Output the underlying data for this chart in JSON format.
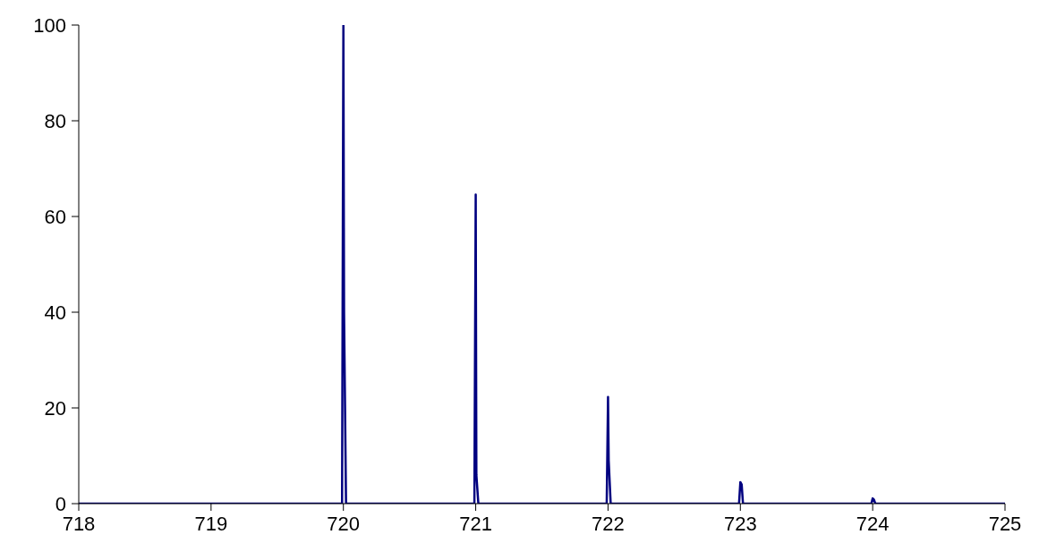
{
  "chart_data": {
    "type": "line",
    "x": [
      718,
      719.99,
      720,
      720.005,
      720.02,
      720.99,
      721,
      721.005,
      721.02,
      721.99,
      722,
      722.005,
      722.02,
      722.99,
      723,
      723.01,
      723.02,
      723.99,
      724,
      724.01,
      724.02,
      725
    ],
    "series": [
      {
        "color": "#000080",
        "values": [
          0,
          0,
          100,
          40,
          0,
          0,
          64.6,
          6,
          0,
          0,
          22.3,
          9,
          0,
          0,
          4.5,
          4,
          0,
          0,
          1.1,
          0.8,
          0,
          0
        ]
      }
    ],
    "xlim": [
      718,
      725
    ],
    "xticks": [
      718,
      719,
      720,
      721,
      722,
      723,
      724,
      725
    ],
    "ylim": [
      0,
      100
    ],
    "yticks": [
      0,
      20,
      40,
      60,
      80,
      100
    ],
    "grid": false,
    "legend": false,
    "marker": "none",
    "line_style": "solid"
  }
}
